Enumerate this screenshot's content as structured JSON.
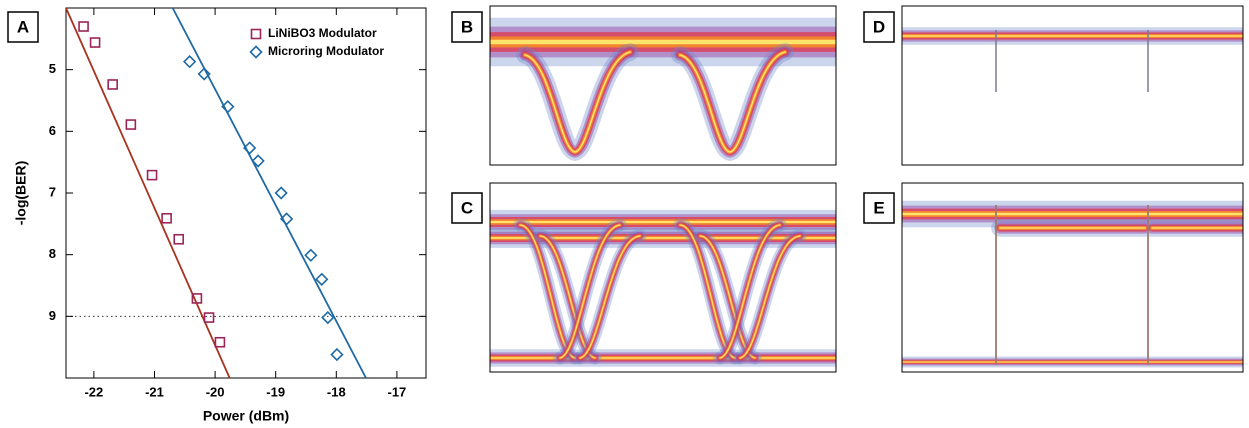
{
  "panel_labels": [
    "A",
    "B",
    "C",
    "D",
    "E"
  ],
  "chart_data": {
    "type": "scatter",
    "x_label": "Power (dBm)",
    "y_label": "-log(BER)",
    "xlim": [
      -22.46,
      -16.52
    ],
    "ylim": [
      4,
      10
    ],
    "y_reversed": true,
    "xticks": [
      -22,
      -21,
      -20,
      -19,
      -18,
      -17
    ],
    "yticks": [
      5,
      6,
      7,
      8,
      9
    ],
    "reference_line": 9,
    "legend": "upper right",
    "series": [
      {
        "name": "LiNiBO3 Modulator",
        "color": "#9b2556",
        "marker": "square",
        "x": [
          -22.17,
          -21.98,
          -21.69,
          -21.39,
          -21.04,
          -20.8,
          -20.6,
          -20.3,
          -20.1,
          -19.92
        ],
        "y": [
          4.3,
          4.56,
          5.24,
          5.89,
          6.71,
          7.41,
          7.75,
          8.71,
          9.02,
          9.42
        ],
        "fit": {
          "color": "#a8321f",
          "x": [
            -22.46,
            -19.76
          ],
          "y": [
            4,
            10
          ]
        }
      },
      {
        "name": "Microring Modulator",
        "color": "#1f6aa5",
        "marker": "diamond",
        "x": [
          -20.42,
          -20.18,
          -19.79,
          -19.43,
          -19.29,
          -18.91,
          -18.82,
          -18.42,
          -18.24,
          -18.14,
          -17.99
        ],
        "y": [
          4.87,
          5.07,
          5.6,
          6.27,
          6.48,
          7.0,
          7.42,
          8.01,
          8.4,
          9.02,
          9.62
        ],
        "fit": {
          "color": "#1f6aa5",
          "x": [
            -20.7,
            -17.51
          ],
          "y": [
            4,
            10
          ]
        }
      }
    ]
  }
}
